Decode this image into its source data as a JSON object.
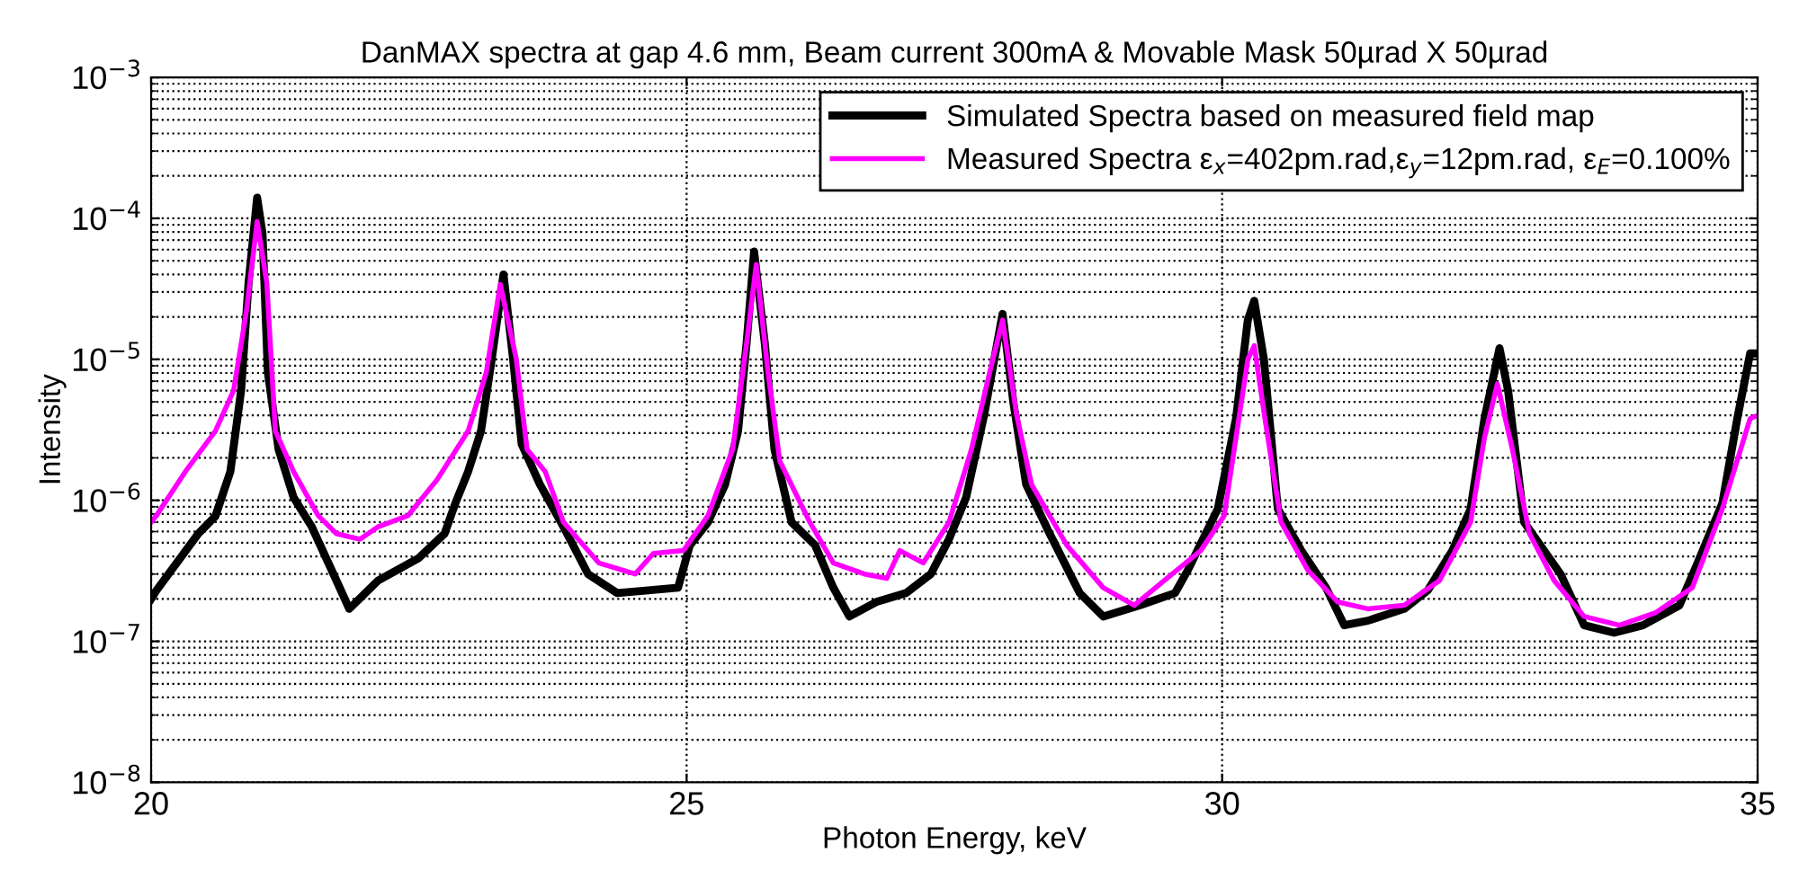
{
  "chart_data": {
    "type": "line",
    "title": "DanMAX spectra at gap 4.6 mm, Beam current 300mA & Movable Mask 50µrad X 50µrad",
    "xlabel": "Photon Energy, keV",
    "ylabel": "Intensity",
    "log": "y",
    "grid": true,
    "legend": "top right",
    "line_style": "solid",
    "marker": "none",
    "xlim": [
      20,
      35
    ],
    "xticks": [
      20,
      25,
      30,
      35
    ],
    "ylim": [
      1e-08,
      0.001
    ],
    "yticks": [
      {
        "value": 1e-08,
        "label": "10$^{−8}$"
      },
      {
        "value": 1e-07,
        "label": "10$^{−7}$"
      },
      {
        "value": 1e-06,
        "label": "10$^{−6}$"
      },
      {
        "value": 1e-05,
        "label": "10$^{−5}$"
      },
      {
        "value": 0.0001,
        "label": "10$^{−4}$"
      },
      {
        "value": 0.001,
        "label": "10$^{−3}$"
      }
    ],
    "series": [
      {
        "name": "Simulated Spectra based on measured field map",
        "color": "#000000",
        "x": [
          20.0,
          20.05,
          20.44,
          20.6,
          20.74,
          20.84,
          20.91,
          20.99,
          21.04,
          21.09,
          21.19,
          21.33,
          21.5,
          21.73,
          21.85,
          22.12,
          22.5,
          22.74,
          22.84,
          22.96,
          23.08,
          23.18,
          23.29,
          23.38,
          23.46,
          23.63,
          23.85,
          24.08,
          24.35,
          24.64,
          24.92,
          25.03,
          25.2,
          25.36,
          25.48,
          25.56,
          25.63,
          25.73,
          25.82,
          25.98,
          26.2,
          26.37,
          26.52,
          26.77,
          27.05,
          27.28,
          27.45,
          27.61,
          27.78,
          27.95,
          28.05,
          28.17,
          28.39,
          28.67,
          28.89,
          29.23,
          29.56,
          29.68,
          29.96,
          30.13,
          30.24,
          30.3,
          30.39,
          30.52,
          30.74,
          30.97,
          31.14,
          31.36,
          31.7,
          31.92,
          32.15,
          32.32,
          32.45,
          32.59,
          32.67,
          32.82,
          33.16,
          33.38,
          33.66,
          33.93,
          34.27,
          34.44,
          34.67,
          34.81,
          34.93,
          35.0
        ],
        "values": [
          2e-07,
          2.3e-07,
          5.8e-07,
          7.7e-07,
          1.6e-06,
          6e-06,
          3.5e-05,
          0.00014,
          7.8e-05,
          8.1e-06,
          2.3e-06,
          1.05e-06,
          6.5e-07,
          2.7e-07,
          1.7e-07,
          2.7e-07,
          3.9e-07,
          5.8e-07,
          9.5e-07,
          1.6e-06,
          3.1e-06,
          1e-05,
          4e-05,
          1e-05,
          2.5e-06,
          1.3e-06,
          6.5e-07,
          3e-07,
          2.2e-07,
          2.3e-07,
          2.4e-07,
          4.8e-07,
          7e-07,
          1.3e-06,
          3.1e-06,
          1.3e-05,
          5.8e-05,
          1.3e-05,
          2.3e-06,
          7e-07,
          4.8e-07,
          2.4e-07,
          1.5e-07,
          1.9e-07,
          2.2e-07,
          3e-07,
          5.3e-07,
          1.05e-06,
          4.1e-06,
          2.1e-05,
          5e-06,
          1.3e-06,
          5.8e-07,
          2.2e-07,
          1.5e-07,
          1.8e-07,
          2.2e-07,
          3.2e-07,
          8.7e-07,
          3.8e-06,
          1.9e-05,
          2.6e-05,
          1e-05,
          8.7e-07,
          4.4e-07,
          2.4e-07,
          1.3e-07,
          1.4e-07,
          1.7e-07,
          2.3e-07,
          4.4e-07,
          8.7e-07,
          3.8e-06,
          1.2e-05,
          6e-06,
          7e-07,
          3e-07,
          1.3e-07,
          1.15e-07,
          1.3e-07,
          1.8e-07,
          3.6e-07,
          9.5e-07,
          3.8e-06,
          1.1e-05,
          1.1e-05
        ]
      },
      {
        "name": "Measured Spectra ε$_{x}$=402pm.rad,ε$_{y}$=12pm.rad, ε$_{E}$=0.100%",
        "color": "#ff00ff",
        "x": [
          20.0,
          20.05,
          20.32,
          20.6,
          20.77,
          20.89,
          20.99,
          21.08,
          21.16,
          21.33,
          21.56,
          21.73,
          21.95,
          22.12,
          22.4,
          22.67,
          22.96,
          23.13,
          23.26,
          23.41,
          23.51,
          23.68,
          23.85,
          24.18,
          24.52,
          24.69,
          24.97,
          25.2,
          25.43,
          25.56,
          25.65,
          25.76,
          25.87,
          26.15,
          26.37,
          26.66,
          26.87,
          26.99,
          27.21,
          27.45,
          27.66,
          27.83,
          27.95,
          28.08,
          28.22,
          28.55,
          28.89,
          29.18,
          29.46,
          29.8,
          30.02,
          30.13,
          30.24,
          30.3,
          30.4,
          30.55,
          30.8,
          31.08,
          31.36,
          31.7,
          32.03,
          32.32,
          32.45,
          32.57,
          32.71,
          32.87,
          33.1,
          33.38,
          33.71,
          34.05,
          34.39,
          34.67,
          34.93,
          35.0
        ],
        "values": [
          7e-07,
          7.8e-07,
          1.6e-06,
          3.1e-06,
          6e-06,
          2.2e-05,
          9.5e-05,
          3.5e-05,
          3.1e-06,
          1.6e-06,
          7.8e-07,
          5.8e-07,
          5.3e-07,
          6.5e-07,
          7.8e-07,
          1.4e-06,
          3.1e-06,
          8.1e-06,
          3.4e-05,
          1e-05,
          2.3e-06,
          1.6e-06,
          7e-07,
          3.6e-07,
          3e-07,
          4.2e-07,
          4.4e-07,
          7.8e-07,
          2.3e-06,
          1.3e-05,
          4.7e-05,
          8.1e-06,
          1.9e-06,
          7e-07,
          3.6e-07,
          3e-07,
          2.8e-07,
          4.4e-07,
          3.6e-07,
          7e-07,
          2.3e-06,
          8.1e-06,
          1.9e-05,
          4.1e-06,
          1.3e-06,
          4.8e-07,
          2.4e-07,
          1.8e-07,
          2.7e-07,
          4.4e-07,
          7.8e-07,
          2.8e-06,
          1e-05,
          1.25e-05,
          3.8e-06,
          7e-07,
          3.2e-07,
          1.9e-07,
          1.7e-07,
          1.8e-07,
          2.7e-07,
          7e-07,
          2.8e-06,
          6.7e-06,
          2.3e-06,
          5.8e-07,
          2.7e-07,
          1.5e-07,
          1.3e-07,
          1.6e-07,
          2.4e-07,
          8.7e-07,
          3.8e-06,
          4e-06
        ]
      }
    ]
  }
}
